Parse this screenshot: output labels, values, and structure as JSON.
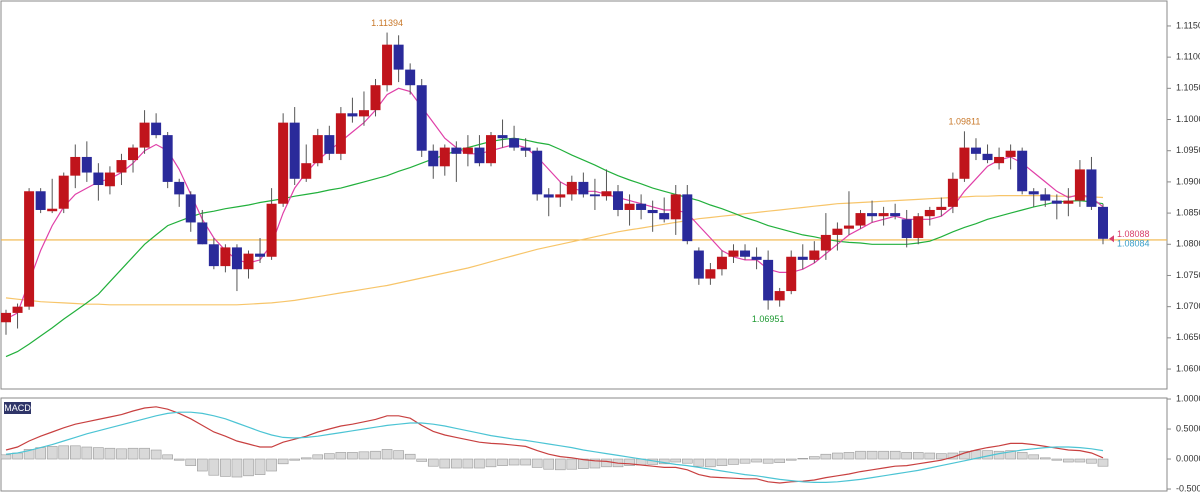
{
  "chart_data": [
    {
      "type": "candlestick",
      "up_color": "#c0141c",
      "down_color": "#2a2a9a",
      "open": [
        1.0675,
        1.069,
        1.07,
        1.0885,
        1.0853,
        1.0857,
        1.091,
        1.094,
        1.0915,
        1.0893,
        1.0915,
        1.0935,
        1.0955,
        1.0995,
        1.0975,
        1.09,
        1.088,
        1.0835,
        1.08,
        1.0765,
        1.0795,
        1.076,
        1.0785,
        1.078,
        1.0865,
        1.0995,
        1.0905,
        1.093,
        1.0975,
        1.0945,
        1.101,
        1.1005,
        1.1015,
        1.1055,
        1.112,
        1.108,
        1.1055,
        1.095,
        1.0925,
        1.0955,
        1.0945,
        1.0955,
        1.093,
        1.0975,
        1.097,
        1.0955,
        1.095,
        1.088,
        1.0875,
        1.088,
        1.09,
        1.088,
        1.0877,
        1.0885,
        1.0855,
        1.0865,
        1.0855,
        1.085,
        1.084,
        1.088,
        1.079,
        1.0745,
        1.076,
        1.078,
        1.079,
        1.078,
        1.0775,
        1.071,
        1.0725,
        1.078,
        1.0775,
        1.079,
        1.0815,
        1.0825,
        1.083,
        1.085,
        1.0845,
        1.085,
        1.084,
        1.081,
        1.0845,
        1.0855,
        1.086,
        1.0905,
        1.0955,
        1.0945,
        1.093,
        1.094,
        1.095,
        1.0885,
        1.088,
        1.087,
        1.0865,
        1.087,
        1.092,
        1.086
      ],
      "high": [
        1.0695,
        1.0705,
        1.089,
        1.089,
        1.0905,
        1.0915,
        1.096,
        1.0965,
        1.093,
        1.0925,
        1.0945,
        1.096,
        1.1015,
        1.101,
        1.098,
        1.0905,
        1.0885,
        1.0855,
        1.081,
        1.08,
        1.08,
        1.079,
        1.081,
        1.089,
        1.101,
        1.102,
        1.096,
        1.0985,
        1.099,
        1.102,
        1.1035,
        1.1045,
        1.1065,
        1.11394,
        1.1135,
        1.109,
        1.1065,
        1.096,
        1.096,
        1.0965,
        1.0975,
        1.0975,
        1.098,
        1.1,
        1.099,
        1.097,
        1.0955,
        1.089,
        1.09,
        1.091,
        1.0915,
        1.0905,
        1.092,
        1.0895,
        1.088,
        1.088,
        1.087,
        1.0875,
        1.0895,
        1.0895,
        1.0795,
        1.077,
        1.079,
        1.08,
        1.08,
        1.0795,
        1.079,
        1.073,
        1.079,
        1.08,
        1.0805,
        1.085,
        1.0835,
        1.0885,
        1.0855,
        1.087,
        1.086,
        1.0865,
        1.0855,
        1.085,
        1.086,
        1.0875,
        1.0915,
        1.09811,
        1.097,
        1.096,
        1.0955,
        1.096,
        1.0955,
        1.089,
        1.089,
        1.088,
        1.089,
        1.0935,
        1.094,
        1.0865
      ],
      "low": [
        1.0655,
        1.0665,
        1.0695,
        1.085,
        1.085,
        1.085,
        1.089,
        1.09,
        1.087,
        1.088,
        1.0895,
        1.0915,
        1.0945,
        1.097,
        1.089,
        1.086,
        1.082,
        1.08,
        1.076,
        1.0755,
        1.0725,
        1.0745,
        1.077,
        1.0775,
        1.086,
        1.0895,
        1.09,
        1.0925,
        1.0935,
        1.0935,
        1.0995,
        1.099,
        1.1005,
        1.1045,
        1.106,
        1.104,
        1.094,
        1.0905,
        1.091,
        1.09,
        1.0925,
        1.0925,
        1.0925,
        1.0955,
        1.095,
        1.094,
        1.087,
        1.0845,
        1.086,
        1.087,
        1.0875,
        1.0855,
        1.087,
        1.0845,
        1.083,
        1.084,
        1.082,
        1.0835,
        1.0815,
        1.08,
        1.0735,
        1.0735,
        1.075,
        1.077,
        1.0775,
        1.076,
        1.06951,
        1.07,
        1.072,
        1.076,
        1.077,
        1.0775,
        1.079,
        1.0815,
        1.0825,
        1.0835,
        1.083,
        1.084,
        1.0795,
        1.08,
        1.083,
        1.0845,
        1.085,
        1.09,
        1.0935,
        1.093,
        1.092,
        1.092,
        1.088,
        1.086,
        1.086,
        1.084,
        1.0845,
        1.086,
        1.0855,
        1.08
      ],
      "close": [
        1.069,
        1.07,
        1.0885,
        1.0855,
        1.0857,
        1.091,
        1.094,
        1.0915,
        1.0895,
        1.0915,
        1.0935,
        1.0955,
        1.0995,
        1.0975,
        1.09,
        1.088,
        1.0835,
        1.08,
        1.0765,
        1.0795,
        1.076,
        1.0785,
        1.078,
        1.0865,
        1.0995,
        1.0905,
        1.093,
        1.0975,
        1.0945,
        1.101,
        1.1005,
        1.1015,
        1.1055,
        1.112,
        1.108,
        1.1055,
        1.095,
        1.0925,
        1.0955,
        1.0945,
        1.0955,
        1.093,
        1.0975,
        1.097,
        1.0955,
        1.095,
        1.088,
        1.0875,
        1.088,
        1.09,
        1.088,
        1.0877,
        1.0885,
        1.0855,
        1.0865,
        1.0855,
        1.085,
        1.084,
        1.088,
        1.0805,
        1.0745,
        1.076,
        1.078,
        1.079,
        1.078,
        1.0775,
        1.071,
        1.0725,
        1.078,
        1.0775,
        1.079,
        1.0815,
        1.0825,
        1.083,
        1.085,
        1.0845,
        1.085,
        1.0845,
        1.081,
        1.0845,
        1.0855,
        1.086,
        1.0905,
        1.0955,
        1.0945,
        1.0935,
        1.094,
        1.095,
        1.0885,
        1.088,
        1.087,
        1.0865,
        1.087,
        1.092,
        1.086,
        1.08088
      ],
      "overlays": [
        {
          "color": "#f7c56a",
          "values": [
            1.0714,
            1.0712,
            1.071,
            1.0708,
            1.0707,
            1.0706,
            1.0705,
            1.0704,
            1.0704,
            1.0703,
            1.0703,
            1.0703,
            1.0703,
            1.0703,
            1.0703,
            1.0703,
            1.0703,
            1.0703,
            1.0703,
            1.0703,
            1.0703,
            1.0704,
            1.0705,
            1.0706,
            1.0708,
            1.071,
            1.0713,
            1.0716,
            1.0719,
            1.0722,
            1.0725,
            1.0728,
            1.0731,
            1.0734,
            1.0738,
            1.0742,
            1.0746,
            1.075,
            1.0754,
            1.0758,
            1.0762,
            1.0767,
            1.0772,
            1.0777,
            1.0782,
            1.0787,
            1.0792,
            1.0796,
            1.08,
            1.0804,
            1.0808,
            1.0812,
            1.0816,
            1.082,
            1.0823,
            1.0826,
            1.0829,
            1.0832,
            1.0835,
            1.0838,
            1.0841,
            1.0843,
            1.0845,
            1.0847,
            1.0849,
            1.0851,
            1.0853,
            1.0855,
            1.0857,
            1.0859,
            1.0861,
            1.0863,
            1.0865,
            1.0866,
            1.0867,
            1.0868,
            1.0869,
            1.087,
            1.0871,
            1.0872,
            1.0873,
            1.0874,
            1.0875,
            1.0876,
            1.0877,
            1.0877,
            1.0878,
            1.0878,
            1.0878,
            1.0878,
            1.0878,
            1.0877,
            1.0877,
            1.0876,
            1.0876,
            1.0875
          ]
        },
        {
          "color": "#22b03c",
          "values": [
            1.062,
            1.0628,
            1.064,
            1.0653,
            1.0666,
            1.068,
            1.0693,
            1.0706,
            1.072,
            1.074,
            1.076,
            1.078,
            1.08,
            1.0815,
            1.083,
            1.0837,
            1.0844,
            1.085,
            1.0853,
            1.0857,
            1.086,
            1.0863,
            1.0867,
            1.087,
            1.0873,
            1.0877,
            1.088,
            1.0883,
            1.0887,
            1.089,
            1.0895,
            1.09,
            1.0905,
            1.091,
            1.0917,
            1.0923,
            1.093,
            1.0937,
            1.0943,
            1.095,
            1.0955,
            1.096,
            1.0965,
            1.0968,
            1.097,
            1.0967,
            1.0963,
            1.096,
            1.0952,
            1.0943,
            1.0935,
            1.0927,
            1.0918,
            1.091,
            1.0903,
            1.0897,
            1.089,
            1.0885,
            1.088,
            1.0875,
            1.087,
            1.0863,
            1.0857,
            1.085,
            1.0843,
            1.0837,
            1.083,
            1.0825,
            1.082,
            1.0815,
            1.0812,
            1.0808,
            1.0805,
            1.0803,
            1.0802,
            1.08,
            1.08,
            1.08,
            1.08,
            1.0802,
            1.0805,
            1.0812,
            1.082,
            1.0827,
            1.0833,
            1.084,
            1.0845,
            1.085,
            1.0855,
            1.086,
            1.0864,
            1.0868,
            1.0869,
            1.087,
            1.0868,
            1.0865
          ]
        },
        {
          "color": "#e040a8",
          "values": [
            1.068,
            1.069,
            1.074,
            1.079,
            1.083,
            1.086,
            1.088,
            1.089,
            1.09,
            1.0905,
            1.0915,
            1.093,
            1.095,
            1.096,
            1.095,
            1.092,
            1.088,
            1.084,
            1.081,
            1.079,
            1.0775,
            1.077,
            1.0775,
            1.08,
            1.085,
            1.089,
            1.0915,
            1.0935,
            1.095,
            1.0965,
            1.098,
            1.0995,
            1.1015,
            1.104,
            1.105,
            1.1045,
            1.102,
            1.0995,
            1.097,
            1.0955,
            1.0945,
            1.0945,
            1.095,
            1.0955,
            1.096,
            1.0955,
            1.094,
            1.092,
            1.09,
            1.089,
            1.0885,
            1.0885,
            1.088,
            1.0875,
            1.087,
            1.0865,
            1.086,
            1.0855,
            1.0855,
            1.085,
            1.083,
            1.081,
            1.079,
            1.078,
            1.0775,
            1.0775,
            1.076,
            1.0755,
            1.0755,
            1.076,
            1.077,
            1.0785,
            1.08,
            1.0815,
            1.0825,
            1.0835,
            1.084,
            1.0845,
            1.084,
            1.084,
            1.084,
            1.0845,
            1.086,
            1.0885,
            1.0905,
            1.0925,
            1.0935,
            1.094,
            1.093,
            1.0915,
            1.09,
            1.0885,
            1.0875,
            1.088,
            1.0875,
            1.086
          ]
        }
      ],
      "hline": {
        "value": 1.0807,
        "color": "#f0b446"
      },
      "annotations": [
        {
          "label": "1.11394",
          "value": 1.11394,
          "color": "#c8782a"
        },
        {
          "label": "1.06951",
          "value": 1.06951,
          "color": "#1e9a32"
        },
        {
          "label": "1.09811",
          "value": 1.09811,
          "color": "#c8782a"
        }
      ],
      "last_price_labels": [
        {
          "label": "1.08088",
          "value": 1.08088,
          "color": "#d8406c"
        },
        {
          "label": "1.08084",
          "value": 1.08084,
          "color": "#3a9ec8"
        }
      ],
      "ylim": [
        1.0568,
        1.119
      ],
      "yticks": [
        {
          "value": 1.06,
          "label": "1.06000"
        },
        {
          "value": 1.065,
          "label": "1.06500"
        },
        {
          "value": 1.07,
          "label": "1.07000"
        },
        {
          "value": 1.075,
          "label": "1.07500"
        },
        {
          "value": 1.08,
          "label": "1.08000"
        },
        {
          "value": 1.085,
          "label": "1.08500"
        },
        {
          "value": 1.09,
          "label": "1.09000"
        },
        {
          "value": 1.095,
          "label": "1.09500"
        },
        {
          "value": 1.1,
          "label": "1.10000"
        },
        {
          "value": 1.105,
          "label": "1.10500"
        },
        {
          "value": 1.11,
          "label": "1.11000"
        },
        {
          "value": 1.115,
          "label": "1.11500"
        }
      ]
    },
    {
      "type": "macd",
      "label": "MACD",
      "histogram": {
        "color": "#d9d9d9",
        "values": [
          0.07,
          0.1,
          0.16,
          0.19,
          0.21,
          0.22,
          0.22,
          0.2,
          0.19,
          0.18,
          0.17,
          0.18,
          0.18,
          0.15,
          0.07,
          -0.02,
          -0.11,
          -0.2,
          -0.27,
          -0.29,
          -0.3,
          -0.28,
          -0.26,
          -0.2,
          -0.08,
          -0.02,
          0.02,
          0.07,
          0.09,
          0.11,
          0.11,
          0.12,
          0.13,
          0.16,
          0.14,
          0.08,
          -0.04,
          -0.12,
          -0.15,
          -0.15,
          -0.15,
          -0.15,
          -0.13,
          -0.11,
          -0.1,
          -0.1,
          -0.14,
          -0.17,
          -0.18,
          -0.17,
          -0.16,
          -0.15,
          -0.13,
          -0.13,
          -0.11,
          -0.1,
          -0.09,
          -0.08,
          -0.05,
          -0.07,
          -0.12,
          -0.13,
          -0.11,
          -0.09,
          -0.07,
          -0.05,
          -0.07,
          -0.06,
          -0.02,
          0.01,
          0.04,
          0.08,
          0.1,
          0.11,
          0.13,
          0.13,
          0.13,
          0.13,
          0.11,
          0.11,
          0.1,
          0.09,
          0.1,
          0.13,
          0.14,
          0.14,
          0.13,
          0.14,
          0.11,
          0.07,
          0.02,
          -0.02,
          -0.05,
          -0.05,
          -0.07,
          -0.12
        ]
      },
      "lines": [
        {
          "color": "#c84040",
          "values": [
            0.15,
            0.2,
            0.3,
            0.38,
            0.45,
            0.52,
            0.58,
            0.62,
            0.66,
            0.7,
            0.74,
            0.8,
            0.85,
            0.87,
            0.83,
            0.76,
            0.67,
            0.56,
            0.45,
            0.38,
            0.3,
            0.25,
            0.2,
            0.2,
            0.28,
            0.33,
            0.38,
            0.45,
            0.5,
            0.55,
            0.58,
            0.62,
            0.66,
            0.72,
            0.72,
            0.68,
            0.56,
            0.46,
            0.4,
            0.36,
            0.32,
            0.28,
            0.26,
            0.25,
            0.23,
            0.21,
            0.14,
            0.08,
            0.04,
            0.02,
            -0.01,
            -0.03,
            -0.04,
            -0.07,
            -0.08,
            -0.1,
            -0.12,
            -0.14,
            -0.14,
            -0.18,
            -0.26,
            -0.3,
            -0.31,
            -0.32,
            -0.33,
            -0.33,
            -0.38,
            -0.4,
            -0.38,
            -0.37,
            -0.35,
            -0.31,
            -0.28,
            -0.25,
            -0.21,
            -0.18,
            -0.15,
            -0.12,
            -0.11,
            -0.08,
            -0.05,
            -0.02,
            0.03,
            0.1,
            0.15,
            0.19,
            0.22,
            0.26,
            0.26,
            0.24,
            0.21,
            0.18,
            0.15,
            0.14,
            0.1,
            0.02
          ]
        },
        {
          "color": "#4cc4d4",
          "values": [
            0.08,
            0.1,
            0.14,
            0.19,
            0.24,
            0.3,
            0.36,
            0.42,
            0.47,
            0.52,
            0.57,
            0.62,
            0.67,
            0.72,
            0.76,
            0.78,
            0.78,
            0.76,
            0.72,
            0.67,
            0.6,
            0.53,
            0.46,
            0.4,
            0.36,
            0.35,
            0.36,
            0.38,
            0.41,
            0.44,
            0.47,
            0.5,
            0.53,
            0.56,
            0.58,
            0.6,
            0.6,
            0.58,
            0.55,
            0.51,
            0.47,
            0.43,
            0.39,
            0.36,
            0.33,
            0.31,
            0.28,
            0.25,
            0.22,
            0.19,
            0.15,
            0.12,
            0.09,
            0.06,
            0.03,
            0.0,
            -0.03,
            -0.06,
            -0.09,
            -0.11,
            -0.14,
            -0.17,
            -0.2,
            -0.23,
            -0.26,
            -0.28,
            -0.31,
            -0.34,
            -0.36,
            -0.38,
            -0.39,
            -0.39,
            -0.38,
            -0.36,
            -0.34,
            -0.31,
            -0.28,
            -0.25,
            -0.22,
            -0.19,
            -0.15,
            -0.11,
            -0.07,
            -0.03,
            0.01,
            0.05,
            0.09,
            0.12,
            0.15,
            0.17,
            0.19,
            0.2,
            0.2,
            0.19,
            0.17,
            0.14
          ]
        }
      ],
      "ylim": [
        -0.533,
        1.017
      ],
      "yticks": [
        {
          "value": -0.5,
          "label": "-0.5000"
        },
        {
          "value": 0,
          "label": "0.0000"
        },
        {
          "value": 0.5,
          "label": "0.5000"
        },
        {
          "value": 1,
          "label": "1.0000"
        }
      ]
    }
  ]
}
